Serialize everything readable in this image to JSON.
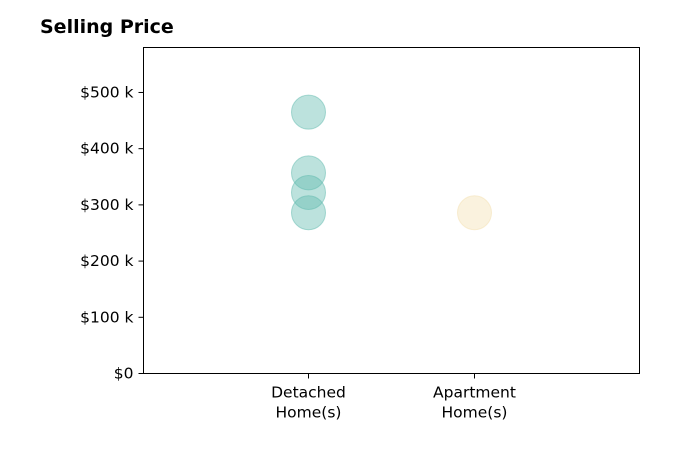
{
  "chart_data": {
    "type": "scatter",
    "title": "Selling Price",
    "xlabel": "",
    "ylabel": "",
    "categories": [
      "Detached\nHome(s)",
      "Apartment\nHome(s)"
    ],
    "ylim": [
      0,
      580000
    ],
    "yticks": [
      0,
      100000,
      200000,
      300000,
      400000,
      500000
    ],
    "ytick_labels": [
      "$0",
      "$100 k",
      "$200 k",
      "$300 k",
      "$400 k",
      "$500 k"
    ],
    "grid": false,
    "legend": "none",
    "series": [
      {
        "category": "Detached\nHome(s)",
        "values": [
          465000,
          357000,
          322000,
          286000
        ],
        "color": "#5fb9ad"
      },
      {
        "category": "Apartment\nHome(s)",
        "values": [
          286000
        ],
        "color": "#f3dfb0"
      }
    ]
  }
}
